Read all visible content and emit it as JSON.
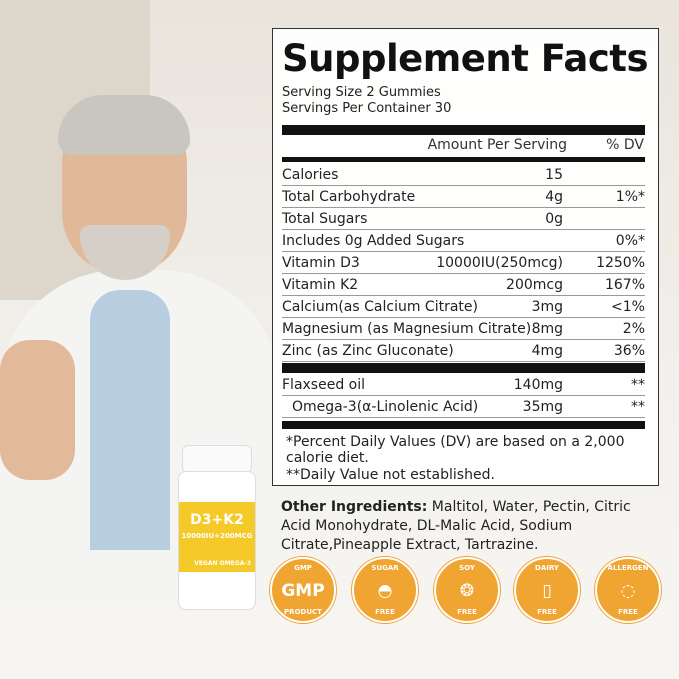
{
  "title": "Supplement Facts",
  "serving_size": "Serving Size 2 Gummies",
  "servings_per_container": "Servings Per Container 30",
  "header": {
    "amount": "Amount Per Serving",
    "dv": "% DV"
  },
  "rows": [
    {
      "name": "Calories",
      "amount": "15",
      "dv": ""
    },
    {
      "name": "Total Carbohydrate",
      "amount": "4g",
      "dv": "1%*"
    },
    {
      "name": "Total Sugars",
      "amount": "0g",
      "dv": ""
    },
    {
      "name": "Includes 0g Added Sugars",
      "amount": "",
      "dv": "0%*"
    },
    {
      "name": "Vitamin  D3",
      "amount": "10000IU(250mcg)",
      "dv": "1250%"
    },
    {
      "name": "Vitamin  K2",
      "amount": "200mcg",
      "dv": "167%"
    },
    {
      "name": "Calcium(as Calcium Citrate)",
      "amount": "3mg",
      "dv": "<1%"
    },
    {
      "name": "Magnesium (as Magnesium Citrate)",
      "amount": "8mg",
      "dv": "2%"
    },
    {
      "name": "Zinc (as Zinc Gluconate)",
      "amount": "4mg",
      "dv": "36%"
    }
  ],
  "rows2": [
    {
      "name": "Flaxseed oil",
      "amount": "140mg",
      "dv": "**"
    },
    {
      "name": "Omega-3(α-Linolenic Acid)",
      "amount": "35mg",
      "dv": "**"
    }
  ],
  "footnote1": "*Percent Daily Values (DV) are based on a 2,000 calorie diet.",
  "footnote2": "**Daily Value not established.",
  "other_label": "Other Ingredients:",
  "other_text": " Maltitol, Water, Pectin, Citric Acid Monohydrate, DL-Malic Acid, Sodium Citrate,Pineapple Extract, Tartrazine.",
  "bottle": {
    "title": "D3+K2",
    "sub": "10000IU+200MCG",
    "vegan": "VEGAN OMEGA-3"
  },
  "badges": [
    {
      "top": "GMP",
      "mid": "GMP",
      "bottom": "PRODUCT",
      "icon": "gmp-icon"
    },
    {
      "top": "SUGAR",
      "mid": "◓",
      "bottom": "FREE",
      "icon": "sugar-bowl-icon"
    },
    {
      "top": "SOY",
      "mid": "❂",
      "bottom": "FREE",
      "icon": "soybean-icon"
    },
    {
      "top": "DAIRY",
      "mid": "▯",
      "bottom": "FREE",
      "icon": "milk-carton-icon"
    },
    {
      "top": "ALLERGEN",
      "mid": "◌",
      "bottom": "FREE",
      "icon": "allergen-icon"
    }
  ],
  "colors": {
    "badge": "#f0a432",
    "bottle_label": "#f5c928"
  }
}
